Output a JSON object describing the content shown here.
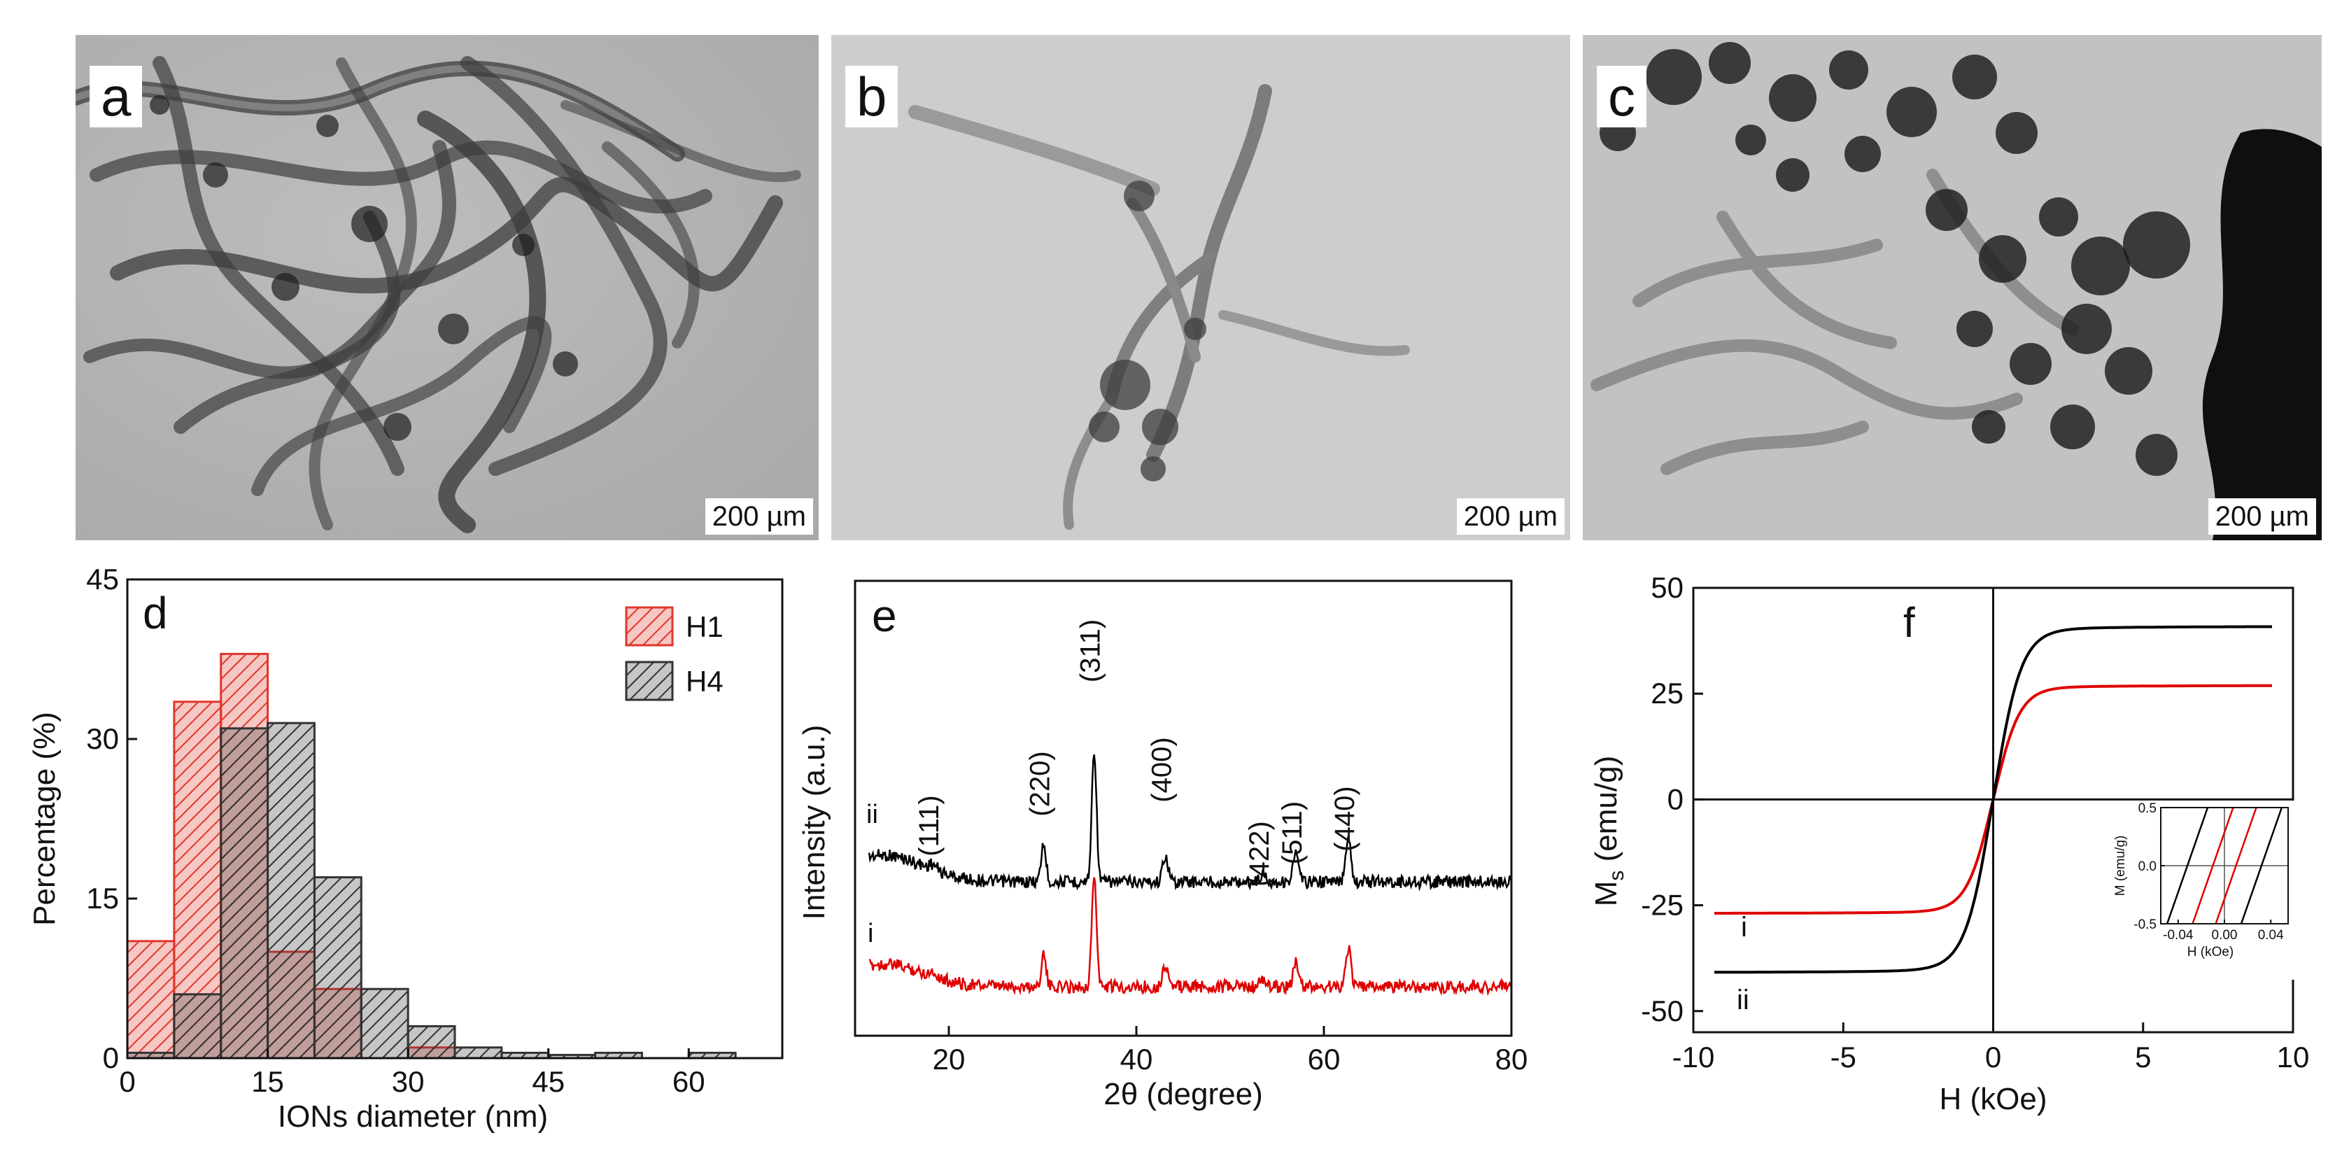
{
  "panels": {
    "a": {
      "label": "a",
      "scale": "200 µm"
    },
    "b": {
      "label": "b",
      "scale": "200 µm"
    },
    "c": {
      "label": "c",
      "scale": "200 µm"
    }
  },
  "chart_data": [
    {
      "panel": "d",
      "type": "bar",
      "xlabel": "IONs diameter (nm)",
      "ylabel": "Percentage (%)",
      "xlim": [
        0,
        70
      ],
      "ylim": [
        0,
        45
      ],
      "xticks": [
        0,
        15,
        30,
        45,
        60
      ],
      "yticks": [
        0,
        15,
        30,
        45
      ],
      "bin_width": 5,
      "bin_starts": [
        0,
        5,
        10,
        15,
        20,
        25,
        30,
        35,
        40,
        45,
        50,
        55,
        60
      ],
      "series": [
        {
          "name": "H1",
          "color": "#e0362c",
          "values": [
            11,
            33.5,
            38,
            10,
            6.5,
            0,
            1,
            0,
            0,
            0,
            0,
            0,
            0
          ]
        },
        {
          "name": "H4",
          "color": "#333333",
          "values": [
            0.5,
            6,
            31,
            31.5,
            17,
            6.5,
            3,
            1,
            0.5,
            0.3,
            0.5,
            0,
            0.5
          ]
        }
      ],
      "legend": "top-right"
    },
    {
      "panel": "e",
      "type": "line",
      "xlabel": "2θ (degree)",
      "ylabel": "Intensity (a.u.)",
      "xlim": [
        10,
        80
      ],
      "xticks": [
        20,
        40,
        60,
        80
      ],
      "series": [
        {
          "name": "ii",
          "color": "#000000"
        },
        {
          "name": "i",
          "color": "#e00000"
        }
      ],
      "peaks": [
        {
          "label": "(111)",
          "x": 18.3
        },
        {
          "label": "(220)",
          "x": 30.1
        },
        {
          "label": "(311)",
          "x": 35.5
        },
        {
          "label": "(400)",
          "x": 43.1
        },
        {
          "label": "(422)",
          "x": 53.5
        },
        {
          "label": "(511)",
          "x": 57.0
        },
        {
          "label": "(440)",
          "x": 62.6
        }
      ]
    },
    {
      "panel": "f",
      "type": "line",
      "xlabel": "H (kOe)",
      "ylabel_main": "M",
      "ylabel_sub": "s",
      "ylabel_rest": " (emu/g)",
      "xlim": [
        -10,
        10
      ],
      "ylim": [
        -55,
        50
      ],
      "xticks": [
        -10,
        -5,
        0,
        5,
        10
      ],
      "yticks": [
        -50,
        -25,
        0,
        25,
        50
      ],
      "series": [
        {
          "name": "i",
          "color": "#e00000",
          "Ms": 27
        },
        {
          "name": "ii",
          "color": "#000000",
          "Ms": 41
        }
      ],
      "inset": {
        "xlabel": "H (kOe)",
        "ylabel": "M (emu/g)",
        "xlim": [
          -0.055,
          0.055
        ],
        "ylim": [
          -0.5,
          0.5
        ],
        "xticks": [
          -0.04,
          0.0,
          0.04
        ],
        "xtick_labels": [
          "-0.04",
          "0.00",
          "0.04"
        ],
        "yticks": [
          -0.5,
          0.0,
          0.5
        ],
        "ytick_labels": [
          "-0.5",
          "0.0",
          "0.5"
        ],
        "coercivity": {
          "i": 0.01,
          "ii": 0.032
        }
      }
    }
  ]
}
